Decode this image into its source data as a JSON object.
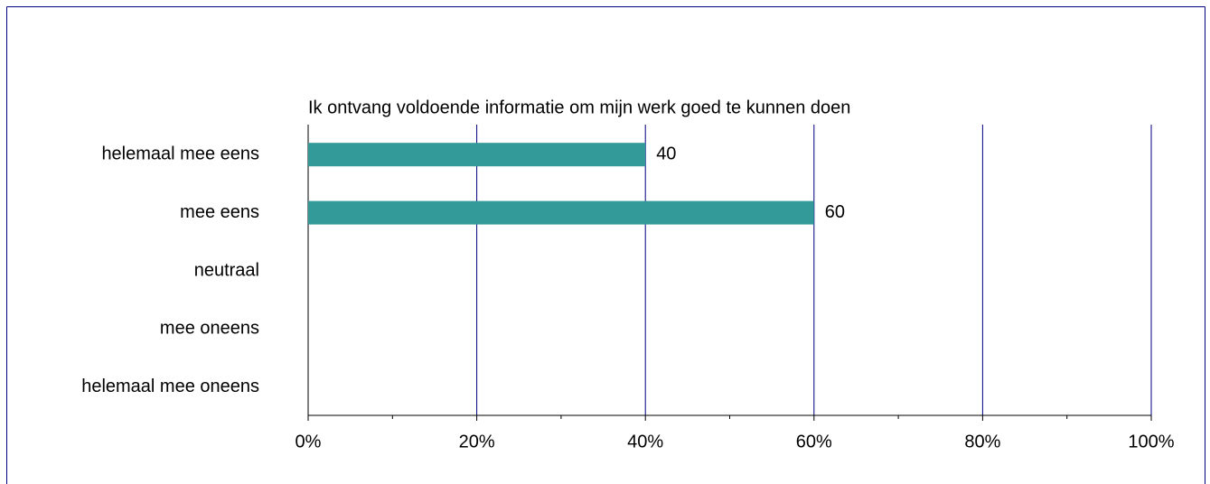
{
  "chart_data": {
    "type": "hbar",
    "title": "Ik ontvang voldoende informatie om mijn werk goed te kunnen doen",
    "categories": [
      "helemaal mee eens",
      "mee eens",
      "neutraal",
      "mee oneens",
      "helemaal mee oneens"
    ],
    "values": [
      40,
      60,
      null,
      null,
      null
    ],
    "color": "#339999",
    "xlim": [
      0,
      100
    ],
    "xticks": [
      {
        "value": 0,
        "label": "0%"
      },
      {
        "value": 20,
        "label": "20%"
      },
      {
        "value": 40,
        "label": "40%"
      },
      {
        "value": 60,
        "label": "60%"
      },
      {
        "value": 80,
        "label": "80%"
      },
      {
        "value": 100,
        "label": "100%"
      }
    ],
    "minor_xticks": [
      10,
      30,
      50,
      70,
      90
    ],
    "grid": true,
    "grid_color": "#000080"
  }
}
